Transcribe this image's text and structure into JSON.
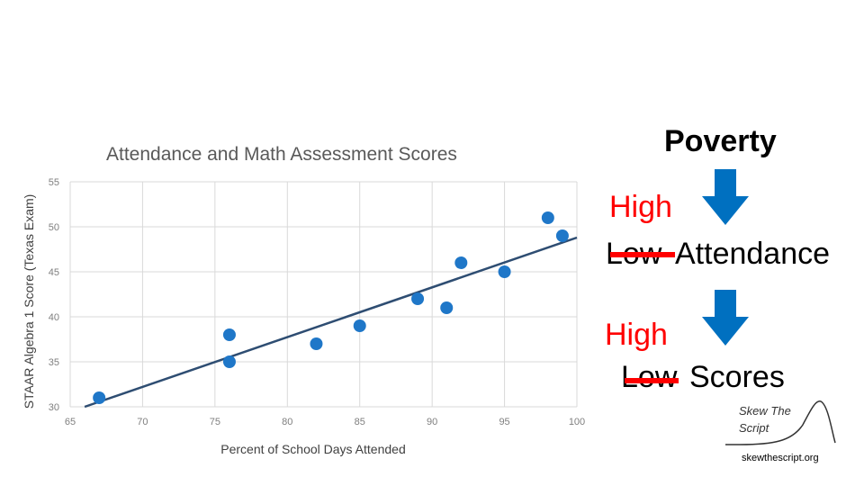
{
  "chart_data": {
    "type": "scatter",
    "title": "Attendance and Math Assessment Scores",
    "xlabel": "Percent of School Days Attended",
    "ylabel": "STAAR Algebra 1 Score (Texas Exam)",
    "xlim": [
      65,
      100
    ],
    "ylim": [
      30,
      55
    ],
    "xticks": [
      65,
      70,
      75,
      80,
      85,
      90,
      95,
      100
    ],
    "yticks": [
      30,
      35,
      40,
      45,
      50,
      55
    ],
    "grid": true,
    "point_color": "#1f77c8",
    "trendline_color": "#2e4d72",
    "points": [
      {
        "x": 67,
        "y": 31
      },
      {
        "x": 76,
        "y": 38
      },
      {
        "x": 76,
        "y": 35
      },
      {
        "x": 82,
        "y": 37
      },
      {
        "x": 85,
        "y": 39
      },
      {
        "x": 89,
        "y": 42
      },
      {
        "x": 91,
        "y": 41
      },
      {
        "x": 92,
        "y": 46
      },
      {
        "x": 95,
        "y": 45
      },
      {
        "x": 98,
        "y": 51
      },
      {
        "x": 99,
        "y": 49
      }
    ],
    "trendline": [
      {
        "x": 66,
        "y": 30
      },
      {
        "x": 100,
        "y": 48.8
      }
    ]
  },
  "slide": {
    "poverty": "Poverty",
    "high_1": "High",
    "low_1": "Low",
    "attendance": "Attendance",
    "high_2": "High",
    "low_2": "Low",
    "scores": "Scores",
    "arrow_color": "#0070c0",
    "strike_color": "#ff0000"
  },
  "logo": {
    "line1": "Skew The",
    "line2": "Script",
    "url": "skewthescript.org"
  }
}
